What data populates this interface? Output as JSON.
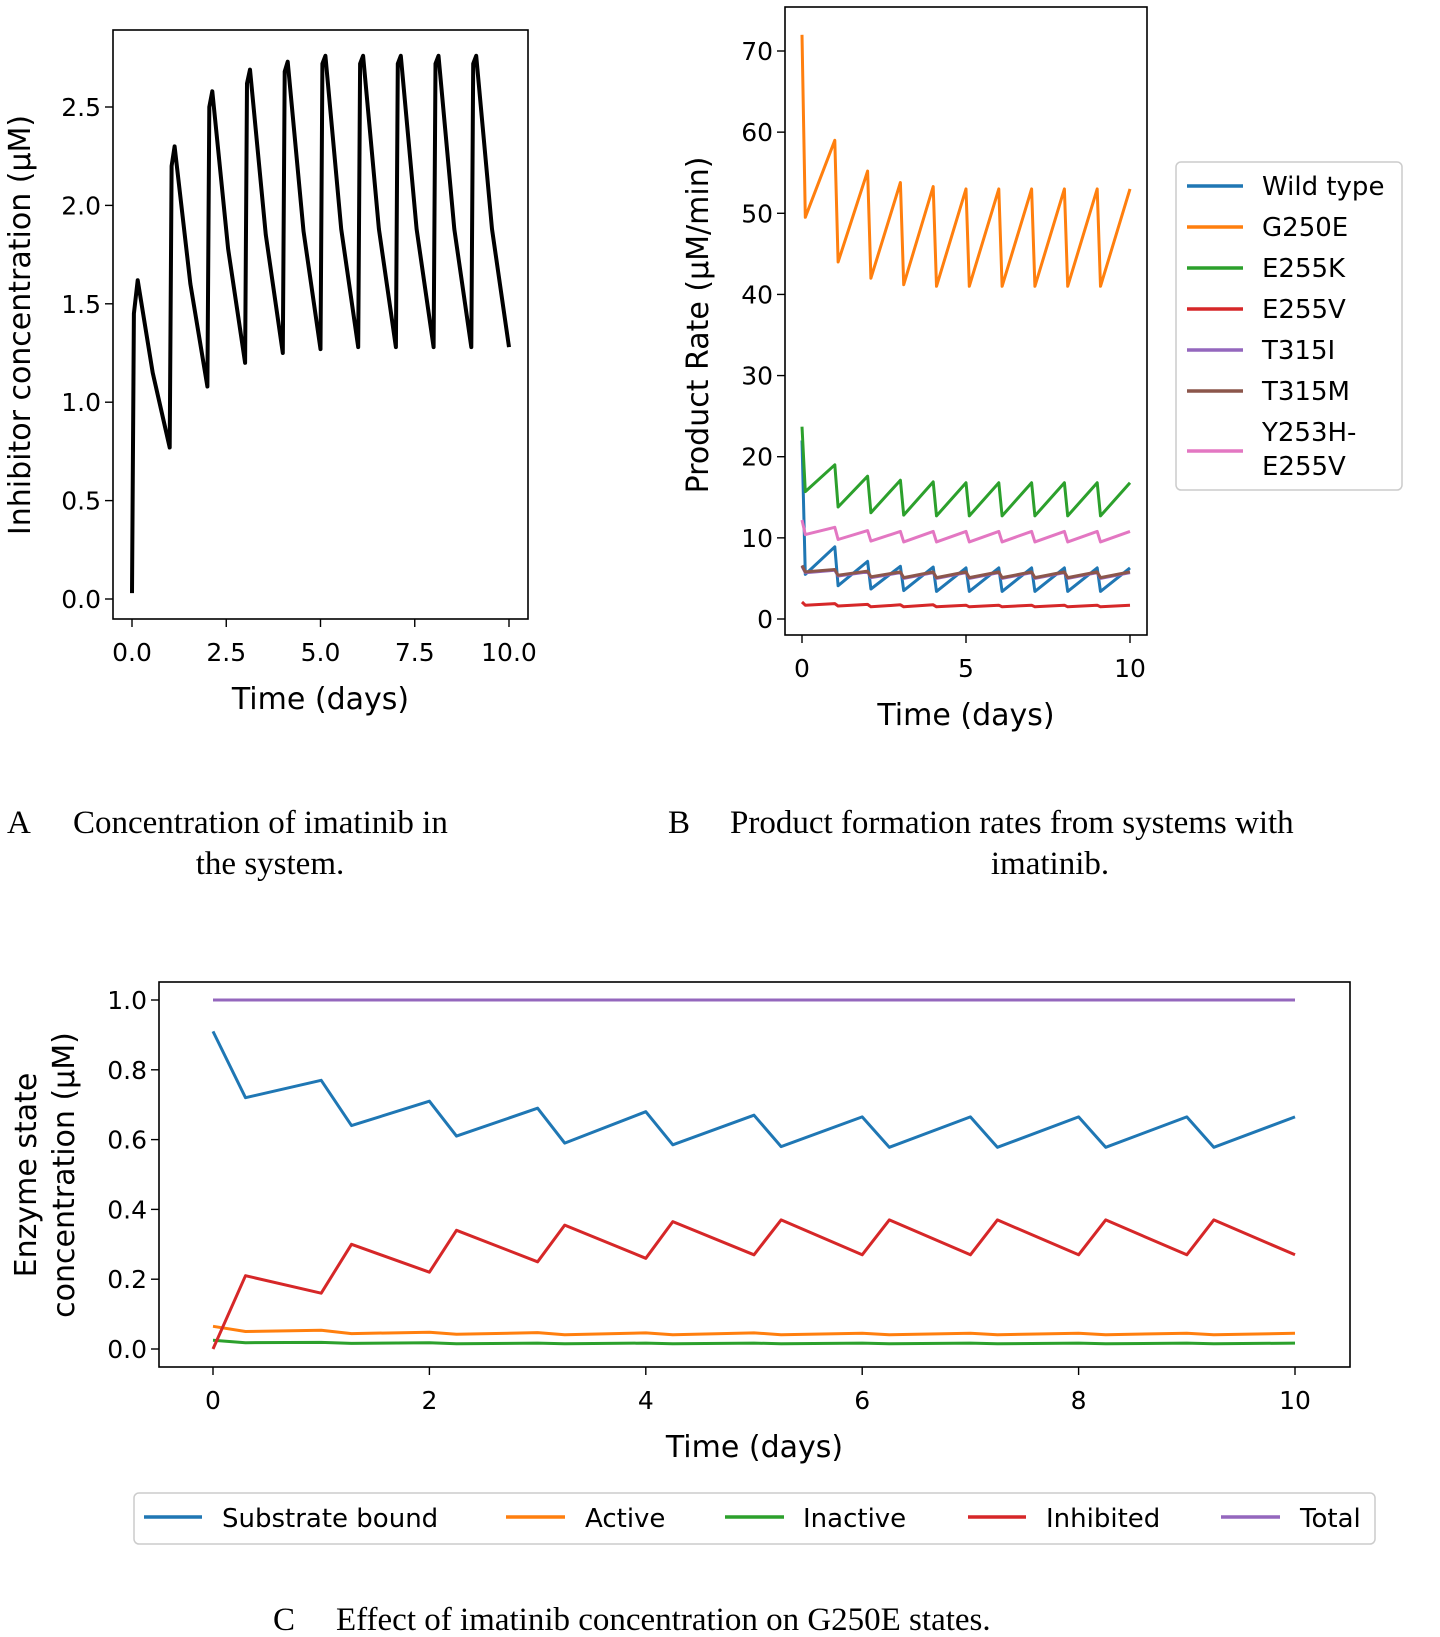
{
  "captions": {
    "a_letter": "A",
    "a_line1": "Concentration of imatinib in",
    "a_line2": "the system.",
    "b_letter": "B",
    "b_line1": "Product formation rates from systems with",
    "b_line2": "imatinib.",
    "c_letter": "C",
    "c_text": "Effect of imatinib concentration on G250E states."
  },
  "chart_data": [
    {
      "type": "line",
      "xlabel": "Time (days)",
      "ylabel": "Inhibitor concentration (μM)",
      "xlim": [
        -0.5,
        10.5
      ],
      "ylim": [
        -0.13,
        2.85
      ],
      "xticks": [
        "0.0",
        "2.5",
        "5.0",
        "7.5",
        "10.0"
      ],
      "yticks": [
        "0.0",
        "0.5",
        "1.0",
        "1.5",
        "2.0",
        "2.5"
      ],
      "grid": false,
      "series": [
        {
          "color": "#000000",
          "x": [
            0,
            0.05,
            0.15,
            0.55,
            1.0,
            1.05,
            1.13,
            1.55,
            2.0,
            2.05,
            2.13,
            2.55,
            3.0,
            3.05,
            3.13,
            3.55,
            4.0,
            4.05,
            4.13,
            4.55,
            5.0,
            5.05,
            5.13,
            5.55,
            6.0,
            6.05,
            6.13,
            6.55,
            7.0,
            7.05,
            7.13,
            7.55,
            8.0,
            8.05,
            8.13,
            8.55,
            9.0,
            9.05,
            9.13,
            9.55,
            10.0
          ],
          "y": [
            0.03,
            1.45,
            1.62,
            1.15,
            0.77,
            2.2,
            2.3,
            1.6,
            1.08,
            2.5,
            2.58,
            1.78,
            1.2,
            2.62,
            2.69,
            1.85,
            1.25,
            2.68,
            2.73,
            1.87,
            1.27,
            2.72,
            2.76,
            1.88,
            1.28,
            2.72,
            2.76,
            1.88,
            1.28,
            2.72,
            2.76,
            1.88,
            1.28,
            2.72,
            2.76,
            1.88,
            1.28,
            2.72,
            2.76,
            1.88,
            1.28
          ]
        }
      ]
    },
    {
      "type": "line",
      "xlabel": "Time (days)",
      "ylabel": "Product Rate (μM/min)",
      "xlim": [
        -0.5,
        11
      ],
      "ylim": [
        -4,
        75
      ],
      "xticks": [
        "0",
        "5",
        "10"
      ],
      "yticks": [
        "0",
        "10",
        "20",
        "30",
        "40",
        "50",
        "60",
        "70"
      ],
      "grid": false,
      "legend": "right-outside",
      "x": [
        0,
        0.1,
        1,
        1.1,
        2,
        2.1,
        3,
        3.1,
        4,
        4.1,
        5,
        5.1,
        6,
        6.1,
        7,
        7.1,
        8,
        8.1,
        9,
        9.1,
        10
      ],
      "series": [
        {
          "name": "Wild type",
          "color": "#1f77b4",
          "values": [
            22,
            5.5,
            8.9,
            4.1,
            7.1,
            3.7,
            6.5,
            3.5,
            6.4,
            3.4,
            6.3,
            3.4,
            6.3,
            3.4,
            6.3,
            3.4,
            6.3,
            3.4,
            6.3,
            3.4,
            6.3
          ]
        },
        {
          "name": "G250E",
          "color": "#ff7f0e",
          "values": [
            72,
            49.5,
            59,
            44,
            55.2,
            42,
            53.8,
            41.2,
            53.3,
            41,
            53,
            41,
            53,
            41,
            53,
            41,
            53,
            41,
            53,
            41,
            53
          ]
        },
        {
          "name": "E255K",
          "color": "#2ca02c",
          "values": [
            23.7,
            15.7,
            19,
            13.8,
            17.6,
            13.1,
            17.1,
            12.8,
            16.9,
            12.7,
            16.8,
            12.7,
            16.8,
            12.7,
            16.8,
            12.7,
            16.8,
            12.7,
            16.8,
            12.7,
            16.8
          ]
        },
        {
          "name": "E255V",
          "color": "#d62728",
          "values": [
            2.1,
            1.7,
            1.9,
            1.6,
            1.8,
            1.5,
            1.75,
            1.5,
            1.75,
            1.5,
            1.7,
            1.5,
            1.7,
            1.5,
            1.7,
            1.5,
            1.7,
            1.5,
            1.7,
            1.5,
            1.7
          ]
        },
        {
          "name": "T315I",
          "color": "#9467bd",
          "values": [
            6.5,
            5.7,
            6.0,
            5.3,
            5.8,
            5.1,
            5.7,
            5.0,
            5.7,
            5.0,
            5.7,
            5.0,
            5.7,
            5.0,
            5.7,
            5.0,
            5.7,
            5.0,
            5.7,
            5.0,
            5.7
          ]
        },
        {
          "name": "T315M",
          "color": "#8c564b",
          "values": [
            6.6,
            5.8,
            6.1,
            5.4,
            5.9,
            5.2,
            5.8,
            5.1,
            5.8,
            5.1,
            5.8,
            5.1,
            5.8,
            5.1,
            5.8,
            5.1,
            5.8,
            5.1,
            5.8,
            5.1,
            5.8
          ]
        },
        {
          "name": "Y253H-\nE255V",
          "color": "#e377c2",
          "values": [
            12.2,
            10.4,
            11.3,
            9.8,
            10.9,
            9.6,
            10.8,
            9.5,
            10.8,
            9.5,
            10.8,
            9.5,
            10.8,
            9.5,
            10.8,
            9.5,
            10.8,
            9.5,
            10.8,
            9.5,
            10.8
          ]
        }
      ],
      "legend_labels": [
        "Wild type",
        "G250E",
        "E255K",
        "E255V",
        "T315I",
        "T315M",
        "Y253H-",
        "E255V"
      ]
    },
    {
      "type": "line",
      "xlabel": "Time (days)",
      "ylabel_line1": "Enzyme state",
      "ylabel_line2": "concentration (μM)",
      "xlim": [
        -0.55,
        10.5
      ],
      "ylim": [
        -0.05,
        1.05
      ],
      "xticks": [
        "0",
        "2",
        "4",
        "6",
        "8",
        "10"
      ],
      "yticks": [
        "0.0",
        "0.2",
        "0.4",
        "0.6",
        "0.8",
        "1.0"
      ],
      "grid": false,
      "legend": "bottom",
      "x": [
        0,
        0.3,
        1,
        1.28,
        2,
        2.25,
        3,
        3.25,
        4,
        4.25,
        5,
        5.25,
        6,
        6.25,
        7,
        7.25,
        8,
        8.25,
        9,
        9.25,
        10
      ],
      "series": [
        {
          "name": "Substrate bound",
          "color": "#1f77b4",
          "values": [
            0.91,
            0.72,
            0.77,
            0.64,
            0.71,
            0.61,
            0.69,
            0.59,
            0.68,
            0.585,
            0.67,
            0.58,
            0.665,
            0.578,
            0.665,
            0.578,
            0.665,
            0.578,
            0.665,
            0.578,
            0.665
          ]
        },
        {
          "name": "Active",
          "color": "#ff7f0e",
          "values": [
            0.065,
            0.05,
            0.054,
            0.044,
            0.048,
            0.042,
            0.047,
            0.041,
            0.046,
            0.041,
            0.046,
            0.041,
            0.045,
            0.041,
            0.045,
            0.041,
            0.045,
            0.041,
            0.045,
            0.041,
            0.045
          ]
        },
        {
          "name": "Inactive",
          "color": "#2ca02c",
          "values": [
            0.025,
            0.018,
            0.019,
            0.016,
            0.018,
            0.015,
            0.017,
            0.015,
            0.017,
            0.015,
            0.017,
            0.015,
            0.017,
            0.015,
            0.017,
            0.015,
            0.017,
            0.015,
            0.017,
            0.015,
            0.017
          ]
        },
        {
          "name": "Inhibited",
          "color": "#d62728",
          "values": [
            0.0,
            0.21,
            0.16,
            0.3,
            0.22,
            0.34,
            0.25,
            0.355,
            0.26,
            0.365,
            0.27,
            0.37,
            0.27,
            0.37,
            0.27,
            0.37,
            0.27,
            0.37,
            0.27,
            0.37,
            0.27
          ]
        },
        {
          "name": "Total",
          "color": "#9467bd",
          "values": [
            1,
            1,
            1,
            1,
            1,
            1,
            1,
            1,
            1,
            1,
            1,
            1,
            1,
            1,
            1,
            1,
            1,
            1,
            1,
            1,
            1
          ]
        }
      ]
    }
  ]
}
